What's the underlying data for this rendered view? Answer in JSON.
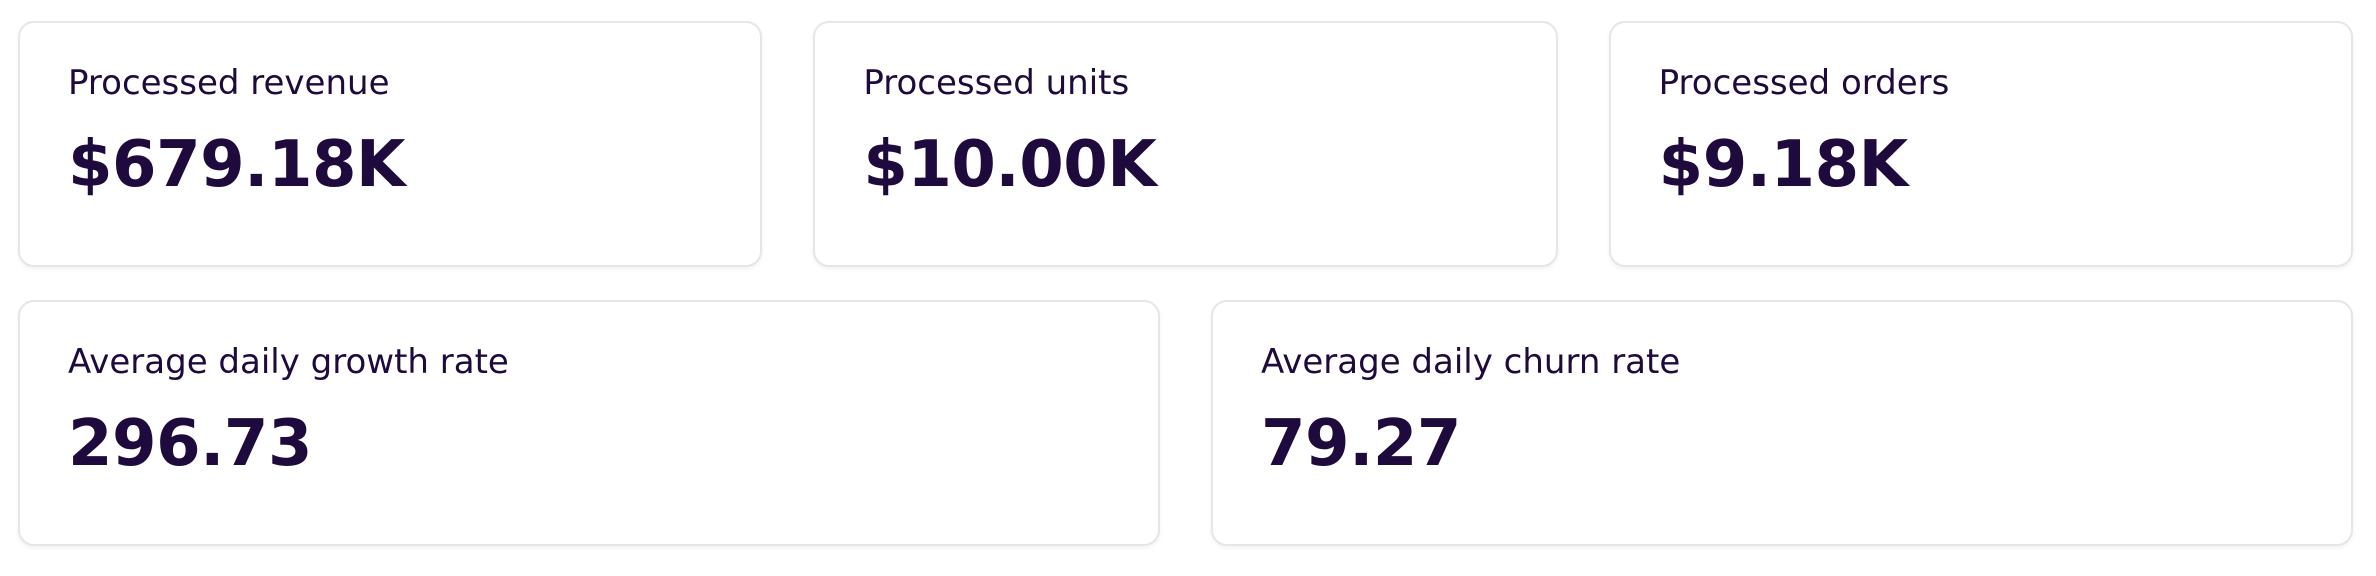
{
  "rows": [
    [
      {
        "label": "Processed revenue",
        "value": "$679.18K"
      },
      {
        "label": "Processed units",
        "value": "$10.00K"
      },
      {
        "label": "Processed orders",
        "value": "$9.18K"
      }
    ],
    [
      {
        "label": "Average daily growth rate",
        "value": "296.73"
      },
      {
        "label": "Average daily churn rate",
        "value": "79.27"
      }
    ]
  ]
}
